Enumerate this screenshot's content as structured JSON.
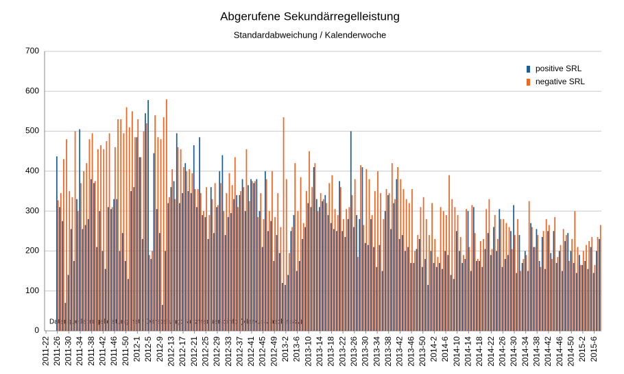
{
  "chart_data": {
    "type": "bar",
    "title": "Abgerufene Sekundärregelleistung",
    "subtitle": "Standardabweichung  /  Kalenderwoche",
    "annotation": "Datenquelle:  regelleistung.net  /  Darstellung:  Netzfrequenz.info  (Markus  Jaschinsky)",
    "categories": [
      "2011-22",
      null,
      null,
      null,
      "2011-26",
      null,
      null,
      null,
      "2011-30",
      null,
      null,
      null,
      "2011-34",
      null,
      null,
      null,
      "2011-38",
      null,
      null,
      null,
      "2011-42",
      null,
      null,
      null,
      "2011-46",
      null,
      null,
      null,
      "2011-50",
      null,
      null,
      null,
      "2012-1",
      null,
      null,
      null,
      "2012-5",
      null,
      null,
      null,
      "2012-9",
      null,
      null,
      null,
      "2012-13",
      null,
      null,
      null,
      "2012-17",
      null,
      null,
      null,
      "2012-21",
      null,
      null,
      null,
      "2012-25",
      null,
      null,
      null,
      "2012-29",
      null,
      null,
      null,
      "2012-33",
      null,
      null,
      null,
      "2012-37",
      null,
      null,
      null,
      "2012-41",
      null,
      null,
      null,
      "2012-45",
      null,
      null,
      null,
      "2012-49",
      null,
      null,
      null,
      "2013-2",
      null,
      null,
      null,
      "2013-6",
      null,
      null,
      null,
      "2013-10",
      null,
      null,
      null,
      "2013-14",
      null,
      null,
      null,
      "2013-18",
      null,
      null,
      null,
      "2013-22",
      null,
      null,
      null,
      "2013-26",
      null,
      null,
      null,
      "2013-30",
      null,
      null,
      null,
      "2013-34",
      null,
      null,
      null,
      "2013-38",
      null,
      null,
      null,
      "2013-42",
      null,
      null,
      null,
      "2013-46",
      null,
      null,
      null,
      "2013-50",
      null,
      null,
      null,
      "2014-2",
      null,
      null,
      null,
      "2014-6",
      null,
      null,
      null,
      "2014-10",
      null,
      null,
      null,
      "2014-14",
      null,
      null,
      null,
      "2014-18",
      null,
      null,
      null,
      "2014-22",
      null,
      null,
      null,
      "2014-26",
      null,
      null,
      null,
      "2014-30",
      null,
      null,
      null,
      "2014-34",
      null,
      null,
      null,
      "2014-38",
      null,
      null,
      null,
      "2014-42",
      null,
      null,
      null,
      "2014-46",
      null,
      null,
      null,
      "2014-50",
      null,
      null,
      null,
      "2015-2",
      null,
      null,
      null,
      "2015-6",
      null,
      null
    ],
    "series": [
      {
        "name": "positive SRL",
        "color": "#1b5e9b",
        "values": [
          null,
          null,
          null,
          null,
          437,
          310,
          275,
          70,
          140,
          255,
          175,
          330,
          505,
          255,
          265,
          280,
          380,
          370,
          210,
          300,
          200,
          155,
          310,
          305,
          330,
          330,
          200,
          245,
          175,
          130,
          350,
          360,
          485,
          435,
          230,
          545,
          578,
          180,
          445,
          305,
          245,
          65,
          200,
          320,
          360,
          375,
          495,
          320,
          345,
          420,
          350,
          345,
          465,
          310,
          485,
          290,
          285,
          230,
          360,
          245,
          310,
          400,
          440,
          240,
          285,
          295,
          330,
          340,
          340,
          380,
          300,
          365,
          380,
          370,
          380,
          300,
          210,
          400,
          250,
          275,
          175,
          240,
          195,
          120,
          115,
          140,
          250,
          290,
          150,
          175,
          230,
          260,
          320,
          310,
          410,
          330,
          310,
          325,
          340,
          290,
          270,
          255,
          250,
          375,
          250,
          235,
          280,
          500,
          260,
          290,
          280,
          410,
          220,
          215,
          280,
          210,
          160,
          215,
          150,
          300,
          340,
          255,
          320,
          380,
          230,
          240,
          200,
          210,
          170,
          170,
          205,
          230,
          160,
          180,
          115,
          200,
          170,
          160,
          170,
          155,
          200,
          190,
          140,
          130,
          250,
          200,
          170,
          180,
          300,
          150,
          310,
          175,
          175,
          160,
          205,
          245,
          190,
          260,
          200,
          305,
          160,
          180,
          190,
          250,
          315,
          145,
          240,
          170,
          200,
          150,
          270,
          210,
          255,
          175,
          235,
          155,
          250,
          195,
          250,
          170,
          200,
          150,
          225,
          245,
          200,
          170,
          145,
          190,
          165,
          175,
          155,
          210,
          145,
          200,
          230
        ]
      },
      {
        "name": "negative SRL",
        "color": "#f26522",
        "values": [
          null,
          null,
          null,
          null,
          327,
          345,
          430,
          480,
          350,
          335,
          500,
          300,
          370,
          400,
          420,
          480,
          495,
          375,
          455,
          465,
          455,
          475,
          495,
          310,
          460,
          530,
          530,
          495,
          560,
          510,
          550,
          485,
          530,
          435,
          500,
          520,
          190,
          200,
          540,
          485,
          480,
          535,
          580,
          335,
          405,
          330,
          460,
          455,
          410,
          400,
          405,
          395,
          355,
          355,
          345,
          300,
          360,
          290,
          330,
          370,
          315,
          370,
          300,
          345,
          395,
          365,
          435,
          310,
          350,
          360,
          455,
          325,
          375,
          375,
          285,
          345,
          280,
          380,
          300,
          400,
          285,
          345,
          260,
          535,
          380,
          195,
          260,
          420,
          300,
          385,
          270,
          350,
          450,
          360,
          420,
          300,
          345,
          330,
          320,
          370,
          390,
          305,
          290,
          360,
          280,
          305,
          310,
          340,
          380,
          185,
          415,
          265,
          405,
          380,
          290,
          350,
          400,
          345,
          280,
          355,
          345,
          420,
          330,
          410,
          380,
          355,
          330,
          320,
          355,
          200,
          240,
          310,
          335,
          280,
          240,
          320,
          230,
          185,
          310,
          300,
          290,
          390,
          330,
          310,
          290,
          235,
          190,
          305,
          210,
          315,
          245,
          180,
          225,
          230,
          305,
          330,
          205,
          290,
          230,
          280,
          280,
          270,
          260,
          205,
          240,
          280,
          150,
          180,
          190,
          325,
          260,
          210,
          240,
          160,
          250,
          280,
          265,
          180,
          285,
          185,
          215,
          255,
          240,
          175,
          230,
          300,
          210,
          165,
          200,
          215,
          225,
          235,
          165,
          235,
          265
        ]
      }
    ],
    "ylim": [
      0,
      700
    ],
    "yticks": [
      0,
      100,
      200,
      300,
      400,
      500,
      600,
      700
    ],
    "grid": true,
    "legend": "top-right"
  }
}
